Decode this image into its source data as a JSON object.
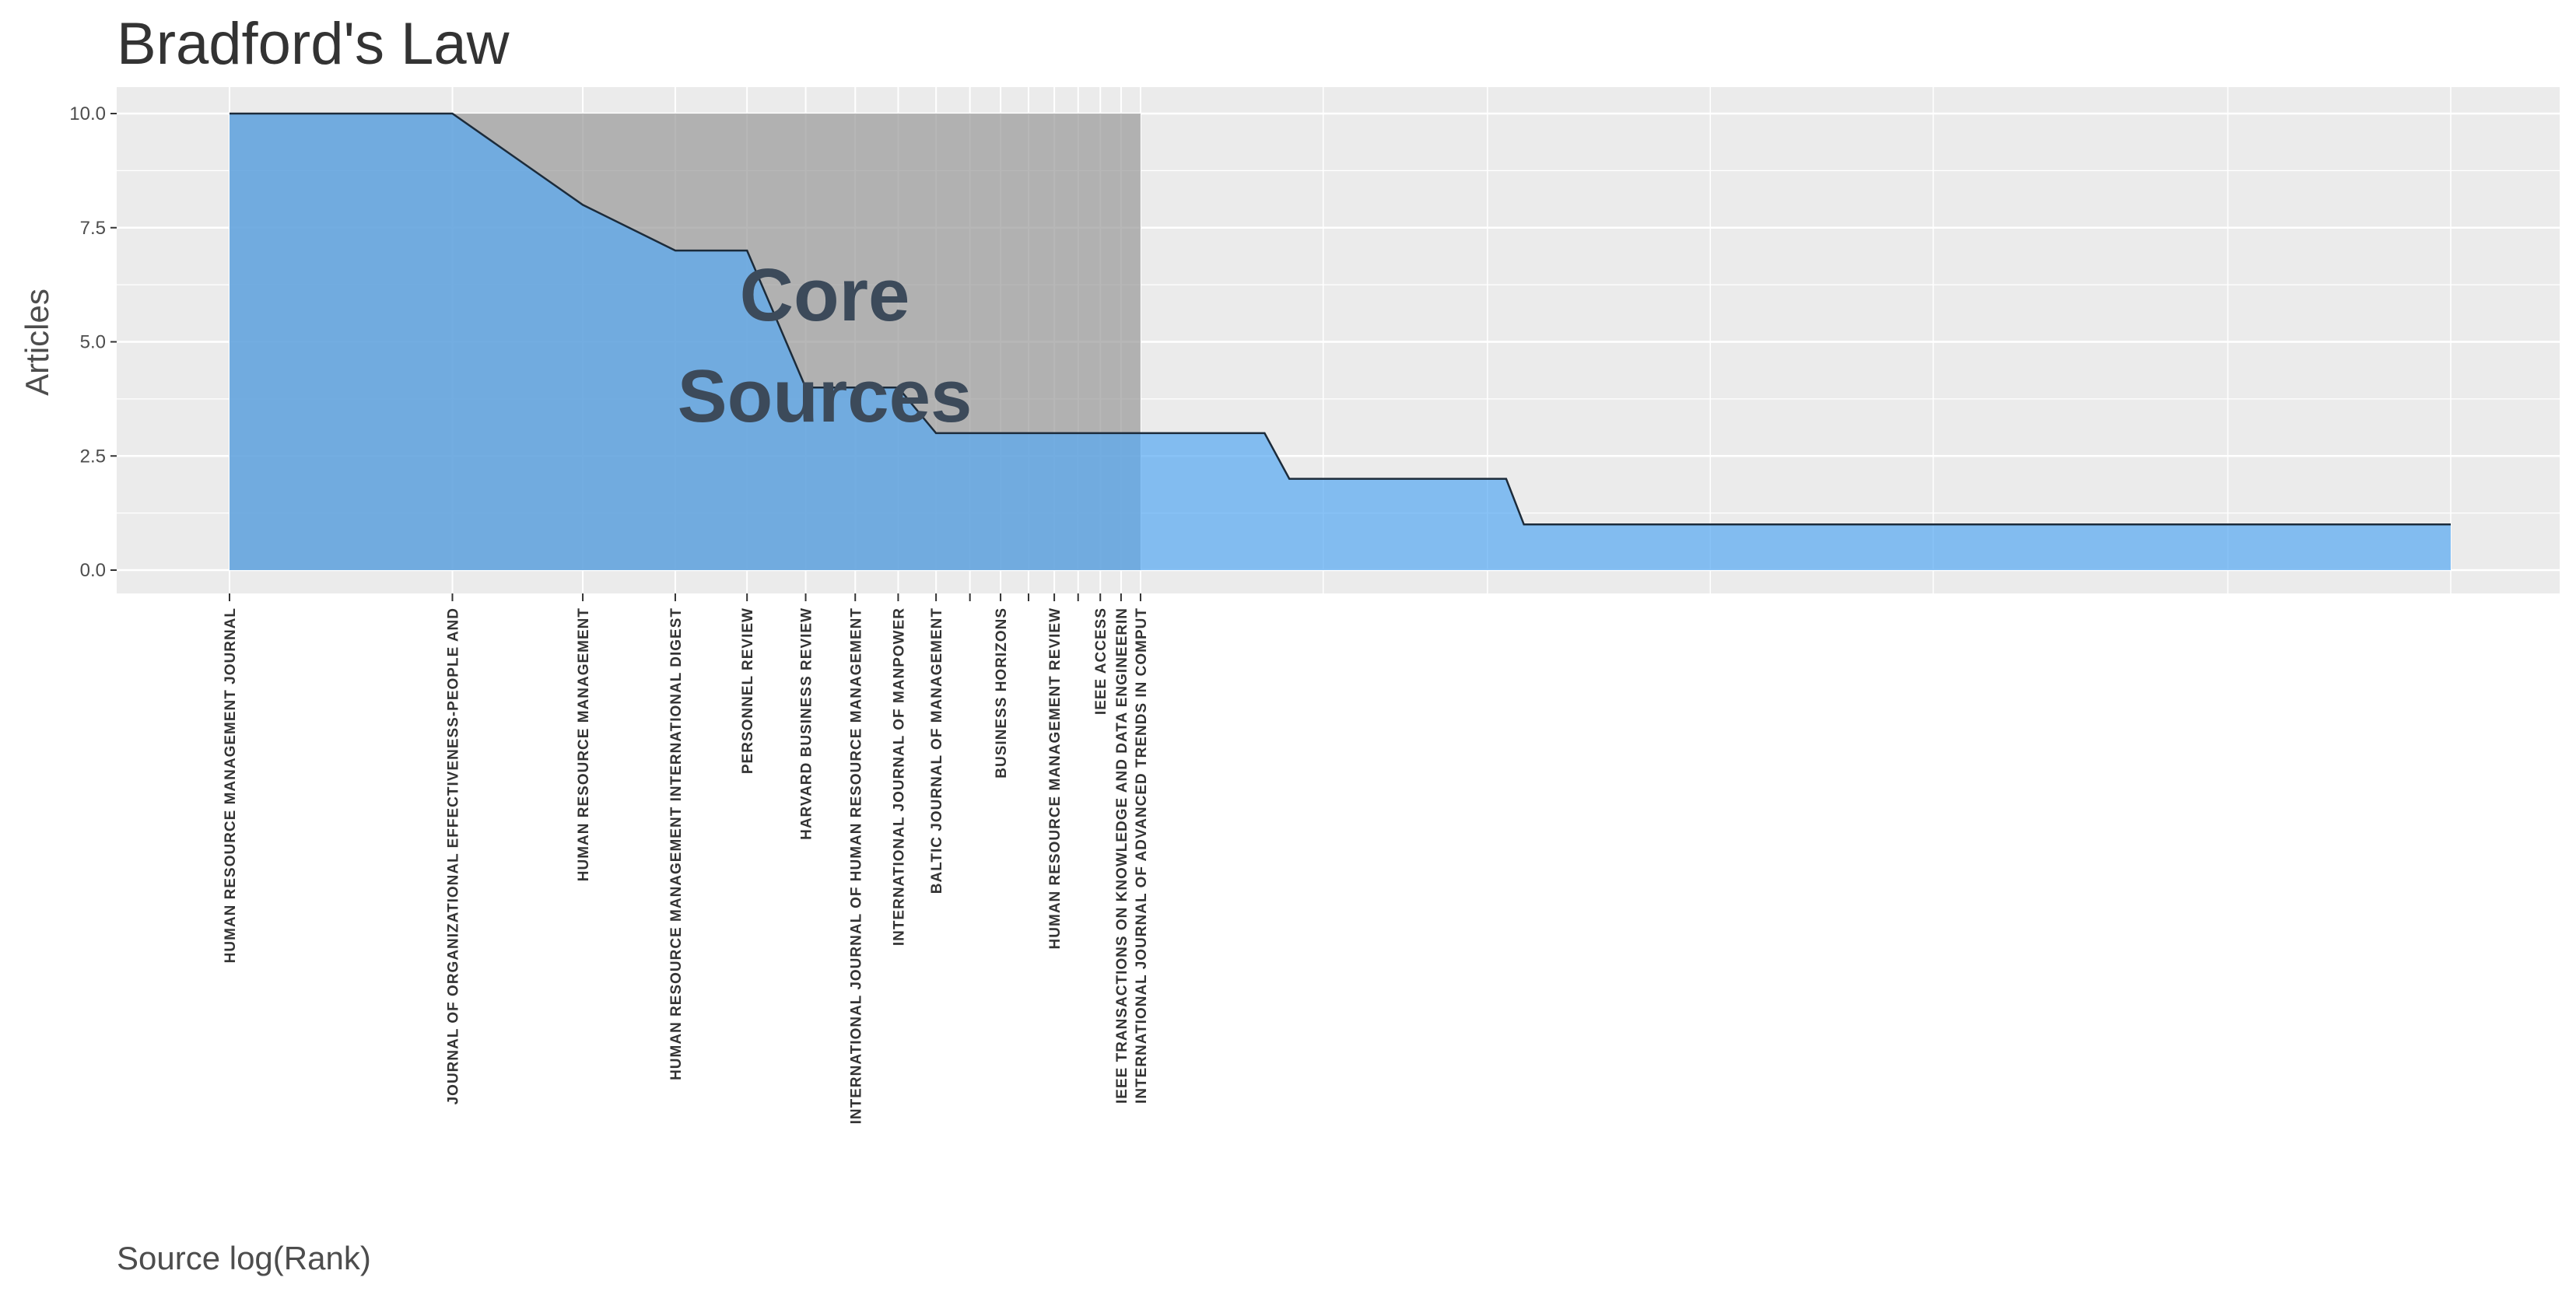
{
  "chart_data": {
    "type": "area",
    "title": "Bradford's Law",
    "xlabel": "Source log(Rank)",
    "ylabel": "Articles",
    "x_scale": "log",
    "ylim": [
      0,
      10
    ],
    "yticks": [
      "0.0",
      "2.5",
      "5.0",
      "7.5",
      "10.0"
    ],
    "ytick_values": [
      0,
      2.5,
      5,
      7.5,
      10
    ],
    "grid": true,
    "annotation": {
      "line1": "Core",
      "line2": "Sources"
    },
    "core_zone_end_rank": 17,
    "sources": [
      {
        "rank": 1,
        "name": "HUMAN RESOURCE MANAGEMENT JOURNAL",
        "articles": 10
      },
      {
        "rank": 2,
        "name": "JOURNAL OF ORGANIZATIONAL EFFECTIVENESS-PEOPLE AND",
        "articles": 10
      },
      {
        "rank": 3,
        "name": "HUMAN RESOURCE MANAGEMENT",
        "articles": 8
      },
      {
        "rank": 4,
        "name": "HUMAN RESOURCE MANAGEMENT INTERNATIONAL DIGEST",
        "articles": 7
      },
      {
        "rank": 5,
        "name": "PERSONNEL REVIEW",
        "articles": 7
      },
      {
        "rank": 6,
        "name": "HARVARD BUSINESS REVIEW",
        "articles": 4
      },
      {
        "rank": 7,
        "name": "INTERNATIONAL JOURNAL OF HUMAN RESOURCE MANAGEMENT",
        "articles": 4
      },
      {
        "rank": 8,
        "name": "INTERNATIONAL JOURNAL OF MANPOWER",
        "articles": 4
      },
      {
        "rank": 9,
        "name": "BALTIC JOURNAL OF MANAGEMENT",
        "articles": 3
      },
      {
        "rank": 10,
        "name": "",
        "articles": 3
      },
      {
        "rank": 11,
        "name": "BUSINESS HORIZONS",
        "articles": 3
      },
      {
        "rank": 12,
        "name": "",
        "articles": 3
      },
      {
        "rank": 13,
        "name": "HUMAN RESOURCE MANAGEMENT REVIEW",
        "articles": 3
      },
      {
        "rank": 14,
        "name": "",
        "articles": 3
      },
      {
        "rank": 15,
        "name": "IEEE ACCESS",
        "articles": 3
      },
      {
        "rank": 16,
        "name": "IEEE TRANSACTIONS ON KNOWLEDGE AND DATA ENGINEERIN",
        "articles": 3
      },
      {
        "rank": 17,
        "name": "INTERNATIONAL JOURNAL OF ADVANCED TRENDS IN COMPUT",
        "articles": 3
      }
    ],
    "tail": [
      {
        "rank": 25,
        "articles": 3
      },
      {
        "rank": 27,
        "articles": 2
      },
      {
        "rank": 53,
        "articles": 2
      },
      {
        "rank": 56,
        "articles": 1
      },
      {
        "rank": 1000,
        "articles": 1
      }
    ],
    "colors": {
      "panel": "#ebebeb",
      "grid": "#ffffff",
      "area": "#56a8f2",
      "core_shade": "#999999",
      "line": "#1c2b3a",
      "annotation": "#3c4a5a"
    }
  }
}
